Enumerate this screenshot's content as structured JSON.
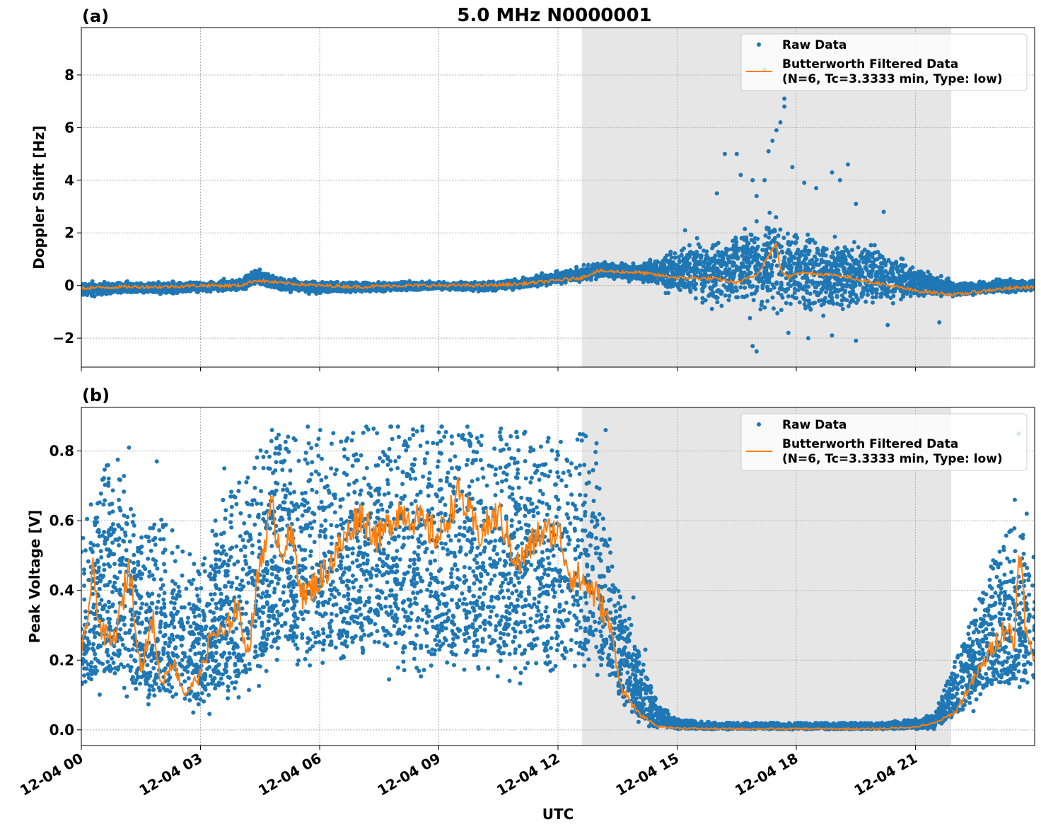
{
  "figure_title": "5.0 MHz N0000001",
  "xlabel": "UTC",
  "x_tick_labels": [
    "12-04 00",
    "12-04 03",
    "12-04 06",
    "12-04 09",
    "12-04 12",
    "12-04 15",
    "12-04 18",
    "12-04 21"
  ],
  "legend": {
    "raw": "Raw Data",
    "filtered_line1": "Butterworth Filtered Data",
    "filtered_line2": "(N=6, Tc=3.3333 min, Type: low)"
  },
  "colors": {
    "raw": "#1f77b4",
    "filtered": "#ff7f0e",
    "shade": "#e6e6e6",
    "grid": "#b0b0b0"
  },
  "chart_data": [
    {
      "type": "scatter",
      "panel_label": "(a)",
      "ylabel": "Doppler Shift [Hz]",
      "x_unit": "hours UTC on 12-04",
      "xlim": [
        0,
        24
      ],
      "ylim": [
        -3.1,
        9.8
      ],
      "yticks": [
        -2,
        0,
        2,
        4,
        6,
        8
      ],
      "ytick_labels": [
        "−2",
        "0",
        "2",
        "4",
        "6",
        "8"
      ],
      "shaded_region": [
        12.6,
        21.9
      ],
      "grid": true,
      "legend_position": "upper right",
      "series": [
        {
          "name": "Raw Data",
          "style": "points",
          "band_x": [
            0,
            1,
            2,
            3,
            4,
            4.4,
            5,
            6,
            7,
            8,
            9,
            10,
            11,
            12,
            12.6,
            13,
            14,
            15,
            16,
            17,
            17.5,
            18,
            19,
            20,
            21,
            22,
            23,
            24
          ],
          "band_low": [
            -0.5,
            -0.4,
            -0.4,
            -0.3,
            -0.3,
            -0.1,
            -0.3,
            -0.4,
            -0.3,
            -0.3,
            -0.2,
            -0.3,
            -0.2,
            0.0,
            0.1,
            0.2,
            0.1,
            -0.6,
            -1.2,
            -1.4,
            -1.6,
            -1.6,
            -1.5,
            -1.0,
            -0.6,
            -0.5,
            -0.4,
            -0.3
          ],
          "band_high": [
            0.2,
            0.2,
            0.2,
            0.2,
            0.3,
            0.8,
            0.4,
            0.2,
            0.2,
            0.2,
            0.2,
            0.2,
            0.3,
            0.6,
            0.8,
            1.0,
            0.9,
            1.6,
            2.3,
            3.0,
            3.1,
            2.8,
            2.3,
            1.8,
            0.9,
            0.2,
            0.3,
            0.3
          ],
          "outliers": [
            [
              15.2,
              2.1
            ],
            [
              15.5,
              1.8
            ],
            [
              16.0,
              3.5
            ],
            [
              16.2,
              5.0
            ],
            [
              16.5,
              5.0
            ],
            [
              16.6,
              4.2
            ],
            [
              16.9,
              4.0
            ],
            [
              17.0,
              3.4
            ],
            [
              17.2,
              4.0
            ],
            [
              17.3,
              5.1
            ],
            [
              17.4,
              5.5
            ],
            [
              17.5,
              5.9
            ],
            [
              17.6,
              6.2
            ],
            [
              17.7,
              6.8
            ],
            [
              17.7,
              7.1
            ],
            [
              17.2,
              8.2
            ],
            [
              17.9,
              4.5
            ],
            [
              18.2,
              3.9
            ],
            [
              18.5,
              3.7
            ],
            [
              18.9,
              4.3
            ],
            [
              19.1,
              4.0
            ],
            [
              19.3,
              4.6
            ],
            [
              19.5,
              3.1
            ],
            [
              20.2,
              2.8
            ],
            [
              16.9,
              -2.3
            ],
            [
              17.0,
              -2.5
            ],
            [
              17.8,
              -1.8
            ],
            [
              18.3,
              -2.0
            ],
            [
              18.9,
              -1.9
            ],
            [
              19.5,
              -2.1
            ],
            [
              20.3,
              -1.5
            ],
            [
              21.6,
              -1.4
            ]
          ]
        },
        {
          "name": "Butterworth Filtered Data\n(N=6, Tc=3.3333 min, Type: low)",
          "style": "line",
          "x": [
            0,
            1,
            2,
            3,
            4,
            4.4,
            5,
            6,
            7,
            8,
            9,
            10,
            11,
            12,
            12.6,
            13,
            14,
            15,
            16,
            16.5,
            17,
            17.5,
            17.6,
            17.8,
            18,
            19,
            20,
            21,
            22,
            23,
            24
          ],
          "y": [
            -0.1,
            -0.05,
            -0.05,
            0.0,
            0.0,
            0.2,
            0.1,
            0.0,
            -0.05,
            0.0,
            0.0,
            0.0,
            0.05,
            0.2,
            0.3,
            0.55,
            0.5,
            0.3,
            0.25,
            0.1,
            0.4,
            1.6,
            0.6,
            0.3,
            0.5,
            0.4,
            0.1,
            -0.2,
            -0.35,
            -0.15,
            -0.05
          ]
        }
      ]
    },
    {
      "type": "scatter",
      "panel_label": "(b)",
      "ylabel": "Peak Voltage [V]",
      "x_unit": "hours UTC on 12-04",
      "xlim": [
        0,
        24
      ],
      "ylim": [
        -0.045,
        0.925
      ],
      "yticks": [
        0.0,
        0.2,
        0.4,
        0.6,
        0.8
      ],
      "ytick_labels": [
        "0.0",
        "0.2",
        "0.4",
        "0.6",
        "0.8"
      ],
      "shaded_region": [
        12.6,
        21.9
      ],
      "grid": true,
      "legend_position": "upper right",
      "series": [
        {
          "name": "Raw Data",
          "style": "points",
          "band_x": [
            0,
            0.5,
            1,
            1.5,
            2,
            2.5,
            3,
            3.5,
            4,
            4.5,
            5,
            5.5,
            6,
            7,
            8,
            9,
            10,
            11,
            12,
            12.6,
            13,
            13.3,
            13.6,
            14,
            14.5,
            15,
            16,
            18,
            20,
            21,
            21.5,
            22,
            22.5,
            23,
            23.5,
            24
          ],
          "band_low": [
            0.08,
            0.06,
            0.05,
            0.04,
            0.02,
            0.02,
            0.02,
            0.02,
            0.04,
            0.1,
            0.15,
            0.15,
            0.13,
            0.14,
            0.12,
            0.1,
            0.11,
            0.1,
            0.12,
            0.12,
            0.1,
            0.08,
            0.04,
            0.01,
            0.0,
            0.0,
            0.0,
            0.0,
            0.0,
            0.0,
            0.0,
            0.02,
            0.05,
            0.07,
            0.06,
            0.08
          ],
          "band_high": [
            0.55,
            0.75,
            0.78,
            0.55,
            0.62,
            0.55,
            0.45,
            0.65,
            0.72,
            0.8,
            0.85,
            0.84,
            0.86,
            0.87,
            0.87,
            0.87,
            0.87,
            0.86,
            0.83,
            0.85,
            0.82,
            0.6,
            0.42,
            0.24,
            0.08,
            0.03,
            0.02,
            0.02,
            0.02,
            0.03,
            0.05,
            0.2,
            0.35,
            0.5,
            0.6,
            0.5
          ],
          "outliers": [
            [
              1.2,
              0.81
            ],
            [
              1.9,
              0.77
            ],
            [
              3.6,
              0.75
            ],
            [
              4.8,
              0.86
            ],
            [
              5.7,
              0.87
            ],
            [
              12.6,
              0.83
            ],
            [
              13.2,
              0.86
            ],
            [
              13.9,
              0.38
            ],
            [
              14.2,
              0.23
            ],
            [
              19.2,
              0.02
            ],
            [
              23.5,
              0.66
            ],
            [
              23.6,
              0.85
            ],
            [
              23.7,
              0.55
            ],
            [
              23.8,
              0.62
            ]
          ]
        },
        {
          "name": "Butterworth Filtered Data\n(N=6, Tc=3.3333 min, Type: low)",
          "style": "line",
          "x": [
            0,
            0.3,
            0.5,
            0.8,
            1.0,
            1.2,
            1.5,
            1.8,
            2.0,
            2.3,
            2.6,
            3.0,
            3.3,
            3.6,
            3.9,
            4.2,
            4.5,
            4.8,
            5.0,
            5.3,
            5.6,
            6.0,
            6.5,
            7.0,
            7.5,
            8.0,
            8.5,
            9.0,
            9.5,
            10.0,
            10.5,
            11.0,
            11.5,
            12.0,
            12.3,
            12.6,
            13.0,
            13.3,
            13.6,
            14.0,
            14.5,
            15.0,
            16.0,
            18.0,
            20.0,
            21.0,
            21.5,
            22.0,
            22.5,
            23.0,
            23.3,
            23.5,
            23.6,
            23.8,
            24.0
          ],
          "y": [
            0.2,
            0.45,
            0.28,
            0.25,
            0.34,
            0.48,
            0.17,
            0.32,
            0.13,
            0.2,
            0.1,
            0.16,
            0.28,
            0.27,
            0.36,
            0.22,
            0.48,
            0.64,
            0.52,
            0.55,
            0.38,
            0.43,
            0.52,
            0.62,
            0.55,
            0.63,
            0.6,
            0.55,
            0.68,
            0.56,
            0.62,
            0.47,
            0.56,
            0.57,
            0.45,
            0.43,
            0.38,
            0.3,
            0.12,
            0.05,
            0.01,
            0.005,
            0.003,
            0.003,
            0.003,
            0.008,
            0.02,
            0.05,
            0.15,
            0.25,
            0.3,
            0.24,
            0.55,
            0.26,
            0.2
          ]
        }
      ]
    }
  ]
}
